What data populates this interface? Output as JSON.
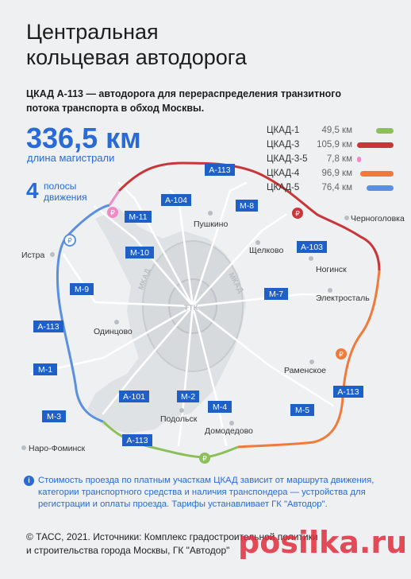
{
  "header": {
    "title_line1": "Центральная",
    "title_line2": "кольцевая автодорога",
    "subtitle": "ЦКАД А-113 — автодорога для перераспределения транзитного потока транспорта в обход Москвы."
  },
  "stats": {
    "length_value": "336,5 км",
    "length_label": "длина магистрали",
    "lanes_number": "4",
    "lanes_label_line1": "полосы",
    "lanes_label_line2": "движения"
  },
  "legend": [
    {
      "name": "ЦКАД-1",
      "length": "49,5 км",
      "color": "#8cbf5a"
    },
    {
      "name": "ЦКАД-3",
      "length": "105,9 км",
      "color": "#c8363a"
    },
    {
      "name": "ЦКАД-3-5",
      "length": "7,8 км",
      "color": "#f08ac4"
    },
    {
      "name": "ЦКАД-4",
      "length": "96,9 км",
      "color": "#f07a3a"
    },
    {
      "name": "ЦКАД-5",
      "length": "76,4 км",
      "color": "#5b8fe0"
    }
  ],
  "map": {
    "cities": [
      "Пушкино",
      "Черноголовка",
      "Щелково",
      "Ногинск",
      "Электросталь",
      "Истра",
      "Одинцово",
      "Раменское",
      "Подольск",
      "Домодедово",
      "Наро-Фоминск"
    ],
    "ring_labels": [
      "МКАД",
      "МКАД",
      "ТТК"
    ],
    "route_labels": [
      "А-113",
      "А-104",
      "М-8",
      "М-11",
      "М-10",
      "А-103",
      "М-9",
      "М-7",
      "А-113",
      "М-1",
      "А-113",
      "А-101",
      "М-2",
      "М-4",
      "М-3",
      "М-5",
      "А-113"
    ],
    "toll_icon": "₽",
    "route_label_color": "#1f5fc8"
  },
  "info": {
    "icon": "i",
    "text": "Стоимость проезда по платным участкам ЦКАД зависит от маршрута движения, категории транспортного средства и наличия транспондера — устройства для регистрации и оплаты проезда. Тарифы устанавливает ГК \"Автодор\"."
  },
  "footer": {
    "line1": "© ТАСС, 2021. Источники: Комплекс градостроительной политики",
    "line2": "и строительства города Москвы, ГК \"Автодор\""
  },
  "watermark": "posilka.ru"
}
